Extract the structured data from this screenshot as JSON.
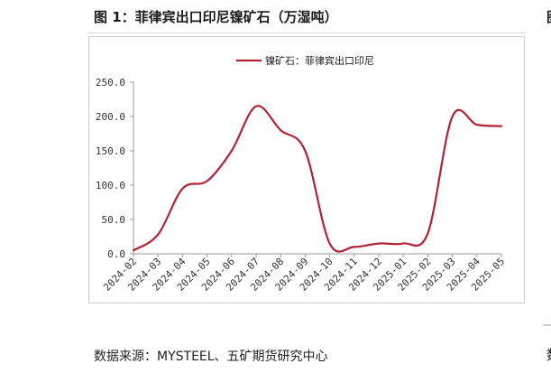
{
  "figure": {
    "title": "图 1：菲律宾出口印尼镍矿石（万湿吨）",
    "source": "数据来源：MYSTEEL、五矿期货研究中心",
    "edge_char_top": "图",
    "edge_char_bottom": "数"
  },
  "chart_data": {
    "type": "line",
    "categories": [
      "2024-02",
      "2024-03",
      "2024-04",
      "2024-05",
      "2024-06",
      "2024-07",
      "2024-08",
      "2024-09",
      "2024-10",
      "2024-11",
      "2024-12",
      "2025-01",
      "2025-02",
      "2025-03",
      "2025-04",
      "2025-05"
    ],
    "series": [
      {
        "name": "镍矿石：菲律宾出口印尼",
        "color": "#b22234",
        "values": [
          5,
          28,
          95,
          106,
          150,
          215,
          180,
          150,
          15,
          10,
          15,
          15,
          30,
          200,
          188,
          186
        ]
      }
    ],
    "title": "",
    "xlabel": "",
    "ylabel": "",
    "ylim": [
      0,
      250
    ],
    "yticks": [
      "0.0",
      "50.0",
      "100.0",
      "150.0",
      "200.0",
      "250.0"
    ],
    "legend_position": "top-center",
    "grid": false
  }
}
